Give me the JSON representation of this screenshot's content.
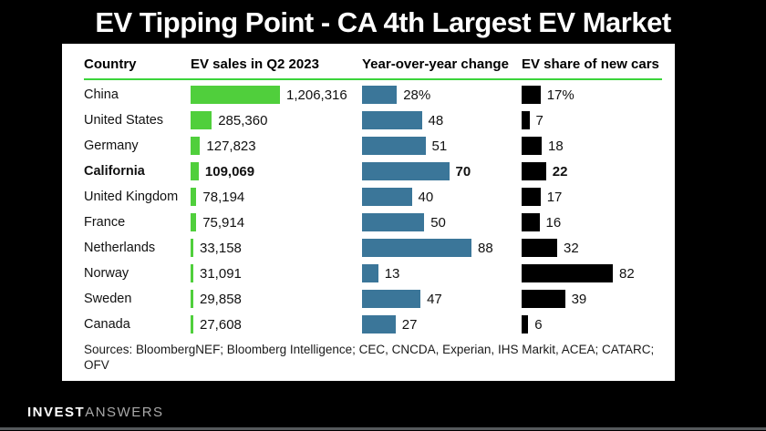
{
  "title": "EV Tipping Point - CA 4th Largest EV Market",
  "colors": {
    "sales_bar": "#50cf3c",
    "yoy_bar": "#3b7699",
    "share_bar": "#000000",
    "header_rule": "#3bd43b",
    "background": "#000000",
    "panel": "#ffffff"
  },
  "chart_data": {
    "type": "bar",
    "title": "EV Tipping Point - CA 4th Largest EV Market",
    "columns": [
      "Country",
      "EV sales in Q2 2023",
      "Year-over-year change",
      "EV share of new cars"
    ],
    "axis": {
      "sales_max": 1206316,
      "yoy_max_pct": 88,
      "share_max_pct": 82,
      "grid": false,
      "legend": "none"
    },
    "rows": [
      {
        "country": "China",
        "sales": 1206316,
        "sales_label": "1,206,316",
        "yoy": 28,
        "yoy_label": "28%",
        "share": 17,
        "share_label": "17%",
        "bold": false
      },
      {
        "country": "United States",
        "sales": 285360,
        "sales_label": "285,360",
        "yoy": 48,
        "yoy_label": "48",
        "share": 7,
        "share_label": "7",
        "bold": false
      },
      {
        "country": "Germany",
        "sales": 127823,
        "sales_label": "127,823",
        "yoy": 51,
        "yoy_label": "51",
        "share": 18,
        "share_label": "18",
        "bold": false
      },
      {
        "country": "California",
        "sales": 109069,
        "sales_label": "109,069",
        "yoy": 70,
        "yoy_label": "70",
        "share": 22,
        "share_label": "22",
        "bold": true
      },
      {
        "country": "United Kingdom",
        "sales": 78194,
        "sales_label": "78,194",
        "yoy": 40,
        "yoy_label": "40",
        "share": 17,
        "share_label": "17",
        "bold": false
      },
      {
        "country": "France",
        "sales": 75914,
        "sales_label": "75,914",
        "yoy": 50,
        "yoy_label": "50",
        "share": 16,
        "share_label": "16",
        "bold": false
      },
      {
        "country": "Netherlands",
        "sales": 33158,
        "sales_label": "33,158",
        "yoy": 88,
        "yoy_label": "88",
        "share": 32,
        "share_label": "32",
        "bold": false
      },
      {
        "country": "Norway",
        "sales": 31091,
        "sales_label": "31,091",
        "yoy": 13,
        "yoy_label": "13",
        "share": 82,
        "share_label": "82",
        "bold": false
      },
      {
        "country": "Sweden",
        "sales": 29858,
        "sales_label": "29,858",
        "yoy": 47,
        "yoy_label": "47",
        "share": 39,
        "share_label": "39",
        "bold": false
      },
      {
        "country": "Canada",
        "sales": 27608,
        "sales_label": "27,608",
        "yoy": 27,
        "yoy_label": "27",
        "share": 6,
        "share_label": "6",
        "bold": false
      }
    ]
  },
  "header": {
    "col_country": "Country",
    "col_sales": "EV sales in Q2 2023",
    "col_yoy": "Year-over-year change",
    "col_share": "EV share of new cars"
  },
  "source_note": "Sources: BloombergNEF; Bloomberg Intelligence; CEC, CNCDA, Experian, IHS Markit, ACEA; CATARC; OFV",
  "footer": {
    "brand_bold": "INVEST",
    "brand_light": "ANSWERS"
  }
}
